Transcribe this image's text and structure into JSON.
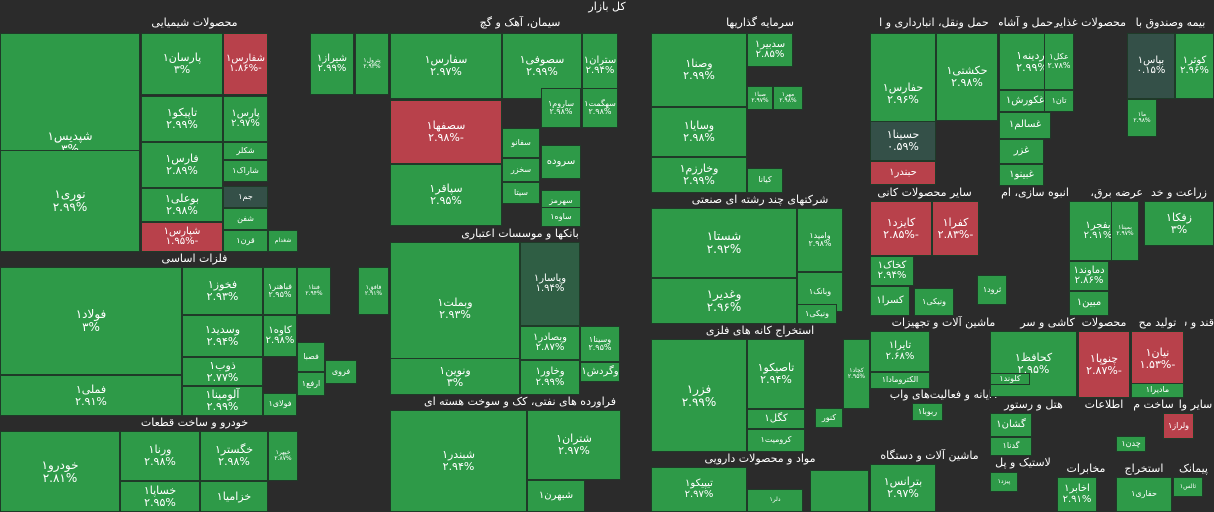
{
  "title": "کل بازار",
  "sectors": [
    "محصولات شیمیایی",
    "سیمان، آهک و گچ",
    "سرمایه گذاریها",
    "حمل ونقل، انبارداری و ا",
    "حمل و آشام",
    "محصولات غذایی و",
    "بیمه وصندوق با",
    "فلزات اساسی",
    "بانکها و موسسات اعتباری",
    "شرکتهای چند رشته ای صنعتی",
    "زراعت و خد",
    "عرضه برق، گاز",
    "انبوه سازی، ام",
    "سایر محصولات کانی",
    "استخراج کانه های فلزی",
    "قند و ش",
    "تولید مح",
    "محصولات",
    "کاشی و سر",
    "ماشین آلات و تجهیزات",
    "رایانه و فعالیت‌های واب",
    "سایر وا",
    "ساخت م",
    "اطلاعات",
    "هتل و رستور",
    "ماشین آلات و دستگاه",
    "خودرو و ساخت قطعات",
    "فراورده های نفتی، کک و سوخت هسته ای",
    "مواد و محصولات دارویی",
    "لاستیک و پل",
    "مخابرات",
    "استخراج",
    "پیمانک"
  ],
  "tiles": [
    {
      "s": "شپدیس۱",
      "p": "۳%"
    },
    {
      "s": "پارسان۱",
      "p": "۳%"
    },
    {
      "s": "شفارس۱",
      "p": "-۱.۸۶%"
    },
    {
      "s": "شیراز۱",
      "p": "۲.۹۹%"
    },
    {
      "s": "پترول۱",
      "p": "۲.۹۳%"
    },
    {
      "s": "تاپیکو۱",
      "p": "۲.۹۹%"
    },
    {
      "s": "پارس۱",
      "p": "۲.۹۷%"
    },
    {
      "s": "شکلر",
      "p": ""
    },
    {
      "s": "فارس۱",
      "p": "۲.۸۹%"
    },
    {
      "s": "شاراک۱",
      "p": ""
    },
    {
      "s": "بوعلی۱",
      "p": "۲.۹۸%"
    },
    {
      "s": "جم۱",
      "p": ""
    },
    {
      "s": "شفن",
      "p": ""
    },
    {
      "s": "نوری۱",
      "p": "۲.۹۹%"
    },
    {
      "s": "شپارس۱",
      "p": "-۱.۹۵%"
    },
    {
      "s": "قرن۱",
      "p": ""
    },
    {
      "s": "شغدام",
      "p": ""
    },
    {
      "s": "سفارس۱",
      "p": "۲.۹۷%"
    },
    {
      "s": "سصوفی۱",
      "p": "۲.۹۹%"
    },
    {
      "s": "ستران۱",
      "p": "۲.۹۴%"
    },
    {
      "s": "ساروم۱",
      "p": "۲.۹۸%"
    },
    {
      "s": "سهگمت۱",
      "p": "۲.۹۸%"
    },
    {
      "s": "سصفها۱",
      "p": "-۲.۹۸%"
    },
    {
      "s": "سفانو",
      "p": ""
    },
    {
      "s": "سخزر",
      "p": ""
    },
    {
      "s": "سروده",
      "p": ""
    },
    {
      "s": "سیتا",
      "p": ""
    },
    {
      "s": "سپاقر۱",
      "p": "۲.۹۵%"
    },
    {
      "s": "سهرمز",
      "p": ""
    },
    {
      "s": "ساوه۱",
      "p": ""
    },
    {
      "s": "وصنا۱",
      "p": "۲.۹۹%"
    },
    {
      "s": "سدبیر۱",
      "p": "۲.۸۵%"
    },
    {
      "s": "صبا۱",
      "p": "۲.۹۷%"
    },
    {
      "s": "مهر۱",
      "p": "۲.۹۸%"
    },
    {
      "s": "وسایا۱",
      "p": "۲.۹۸%"
    },
    {
      "s": "وخارزم۱",
      "p": "۲.۹۹%"
    },
    {
      "s": "کیانا",
      "p": ""
    },
    {
      "s": "حفارس۱",
      "p": "۲.۹۶%"
    },
    {
      "s": "حکشتی۱",
      "p": "۲.۹۸%"
    },
    {
      "s": "حسینا۱",
      "p": "۰.۵۹%"
    },
    {
      "s": "حبندر۱",
      "p": ""
    },
    {
      "s": "آردینه۱",
      "p": "۲.۹۹%"
    },
    {
      "s": "عکل۱",
      "p": "۲.۷۸%"
    },
    {
      "s": "غکورش۱",
      "p": ""
    },
    {
      "s": "تان۱",
      "p": ""
    },
    {
      "s": "غسالم۱",
      "p": ""
    },
    {
      "s": "غزر",
      "p": ""
    },
    {
      "s": "غبینو۱",
      "p": ""
    },
    {
      "s": "بپاس۱",
      "p": "۰.۱۵%"
    },
    {
      "s": "کوثر۱",
      "p": "۲.۹۶%"
    },
    {
      "s": "ما۱",
      "p": "۲.۹۸%"
    },
    {
      "s": "فولاد۱",
      "p": "۳%"
    },
    {
      "s": "فخوز۱",
      "p": "۲.۹۳%"
    },
    {
      "s": "فباهنر۱",
      "p": "۲.۹۵%"
    },
    {
      "s": "فنتا۱",
      "p": "۲.۹۴%"
    },
    {
      "s": "فافق۱",
      "p": "۲.۹۱%"
    },
    {
      "s": "وسدید۱",
      "p": "۲.۹۴%"
    },
    {
      "s": "کاوه۱",
      "p": "۲.۹۸%"
    },
    {
      "s": "ذوب۱",
      "p": "۲.۷۷%"
    },
    {
      "s": "فصبا",
      "p": ""
    },
    {
      "s": "فملی۱",
      "p": "۲.۹۱%"
    },
    {
      "s": "آلومینا۱",
      "p": "۲.۹۹%"
    },
    {
      "s": "فولای۱",
      "p": ""
    },
    {
      "s": "فروی",
      "p": ""
    },
    {
      "s": "ارفع۱",
      "p": ""
    },
    {
      "s": "وبملت۱",
      "p": "۲.۹۳%"
    },
    {
      "s": "وپاسار۱",
      "p": "۱.۹۴%"
    },
    {
      "s": "وبصادر۱",
      "p": "۲.۸۷%"
    },
    {
      "s": "وسینا۱",
      "p": "۲.۹۵%"
    },
    {
      "s": "ونوین۱",
      "p": "۳%"
    },
    {
      "s": "وخاور۱",
      "p": "۲.۹۹%"
    },
    {
      "s": "وگردش۱",
      "p": ""
    },
    {
      "s": "شستا۱",
      "p": "۲.۹۲%"
    },
    {
      "s": "وامید۱",
      "p": "۲.۹۸%"
    },
    {
      "s": "وبانک۱",
      "p": ""
    },
    {
      "s": "وغدیر۱",
      "p": "۲.۹۶%"
    },
    {
      "s": "ونیکی۱",
      "p": ""
    },
    {
      "s": "فزر۱",
      "p": "۲.۹۹%"
    },
    {
      "s": "تاصیکو۱",
      "p": "۲.۹۴%"
    },
    {
      "s": "کچاد۱",
      "p": "۲.۹۵%"
    },
    {
      "s": "کگل۱",
      "p": ""
    },
    {
      "s": "کنور",
      "p": ""
    },
    {
      "s": "کرومیت۱",
      "p": ""
    },
    {
      "s": "کایزد۱",
      "p": "-۲.۸۵%"
    },
    {
      "s": "کفرا۱",
      "p": "-۲.۸۳%"
    },
    {
      "s": "کخاک۱",
      "p": "۲.۹۴%"
    },
    {
      "s": "ثرود۱",
      "p": ""
    },
    {
      "s": "ونیکی۱",
      "p": ""
    },
    {
      "s": "کسرا۱",
      "p": ""
    },
    {
      "s": "بفجر۱",
      "p": "۲.۹۱%"
    },
    {
      "s": "بمپنا۱",
      "p": "۲.۹۷%"
    },
    {
      "s": "زفکا۱",
      "p": "۳%"
    },
    {
      "s": "دماوند۱",
      "p": "۲.۸۶%"
    },
    {
      "s": "مبین۱",
      "p": ""
    },
    {
      "s": "تایرا۱",
      "p": "۲.۶۸%"
    },
    {
      "s": "الکترومادا۱",
      "p": ""
    },
    {
      "s": "کحافظ۱",
      "p": "۲.۹۵%"
    },
    {
      "s": "کلوند۱",
      "p": ""
    },
    {
      "s": "چنوپا۱",
      "p": "-۲.۸۷%"
    },
    {
      "s": "نیان۱",
      "p": "-۱.۵۳%"
    },
    {
      "s": "مادیرا۱",
      "p": ""
    },
    {
      "s": "ربوبا۱",
      "p": ""
    },
    {
      "s": "گشان۱",
      "p": ""
    },
    {
      "s": "گدنا۱",
      "p": ""
    },
    {
      "s": "ولراز۱",
      "p": ""
    },
    {
      "s": "چدن۱",
      "p": ""
    },
    {
      "s": "بترانس۱",
      "p": "۲.۹۷%"
    },
    {
      "s": "پیزد۱",
      "p": ""
    },
    {
      "s": "اخابر۱",
      "p": "۲.۹۱%"
    },
    {
      "s": "حفاری۱",
      "p": ""
    },
    {
      "s": "ثالس۱",
      "p": ""
    },
    {
      "s": "خودرو۱",
      "p": "۲.۸۱%"
    },
    {
      "s": "ورنا۱",
      "p": "۲.۹۸%"
    },
    {
      "s": "خگستر۱",
      "p": "۲.۹۸%"
    },
    {
      "s": "خپهر۱",
      "p": "۲.۸۷%"
    },
    {
      "s": "خساپا۱",
      "p": "۲.۹۵%"
    },
    {
      "s": "خزامیا۱",
      "p": ""
    },
    {
      "s": "شبندر۱",
      "p": "۲.۹۴%"
    },
    {
      "s": "شتران۱",
      "p": "۲.۹۷%"
    },
    {
      "s": "شبهرن۱",
      "p": ""
    },
    {
      "s": "تیپیکو۱",
      "p": "۲.۹۷%"
    },
    {
      "s": "دلر۱",
      "p": ""
    },
    {
      "s": "",
      "p": ""
    }
  ]
}
